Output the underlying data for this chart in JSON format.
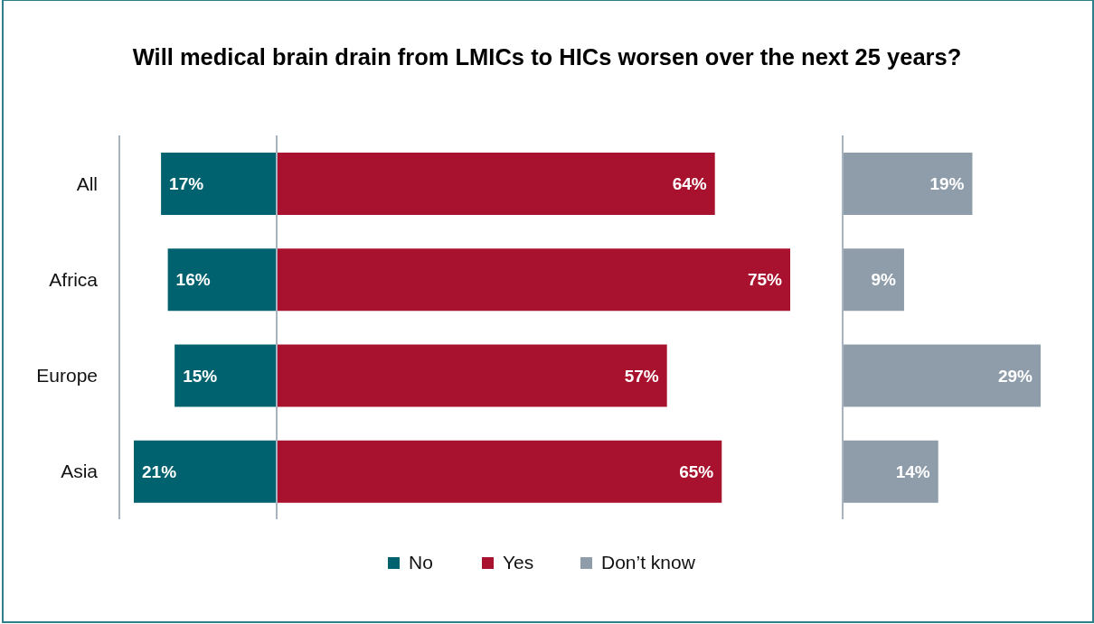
{
  "chart_data": [
    {
      "type": "bar",
      "orientation": "horizontal",
      "title": "Will medical brain drain from LMICs to HICs worsen over the next 25 years?",
      "categories": [
        "All",
        "Africa",
        "Europe",
        "Asia"
      ],
      "series": [
        {
          "name": "No",
          "color": "#00626f",
          "values": [
            17,
            16,
            15,
            21
          ],
          "value_labels": [
            "17%",
            "16%",
            "15%",
            "21%"
          ]
        }
      ],
      "tick_labels": "y",
      "legend": "bottom"
    },
    {
      "type": "bar",
      "orientation": "horizontal",
      "categories": [
        null,
        null,
        null,
        null
      ],
      "series": [
        {
          "name": "Yes",
          "color": "#a8122e",
          "values": [
            64,
            75,
            57,
            65
          ],
          "value_labels": [
            "64%",
            "75%",
            "57%",
            "65%"
          ]
        }
      ],
      "tick_labels": "y",
      "legend": "bottom"
    },
    {
      "type": "bar",
      "orientation": "horizontal",
      "categories": [
        null,
        null,
        null,
        null
      ],
      "series": [
        {
          "name": "Don’t know",
          "color": "#8f9dab",
          "values": [
            19,
            9,
            29,
            14
          ],
          "value_labels": [
            "19%",
            "9%",
            "29%",
            "14%"
          ]
        }
      ],
      "tick_labels": "y",
      "legend": "bottom"
    }
  ]
}
